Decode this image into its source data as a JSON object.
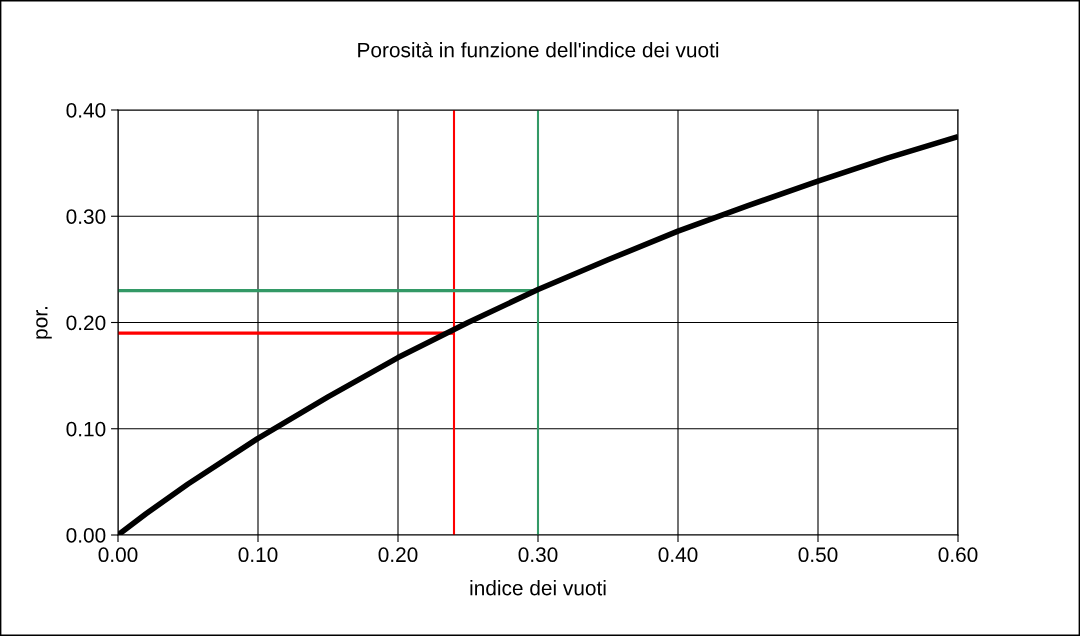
{
  "chart_data": {
    "type": "line",
    "title": "Porosità in funzione dell'indice dei vuoti",
    "xlabel": "indice dei vuoti",
    "ylabel": "por.",
    "x": [
      0,
      0.02,
      0.05,
      0.1,
      0.15,
      0.2,
      0.25,
      0.3,
      0.35,
      0.4,
      0.45,
      0.5,
      0.55,
      0.6
    ],
    "series": [
      {
        "color": "#000000",
        "values": [
          0,
          0.02,
          0.048,
          0.091,
          0.13,
          0.167,
          0.2,
          0.231,
          0.259,
          0.286,
          0.31,
          0.333,
          0.355,
          0.375
        ]
      },
      {
        "color": "#ff0000",
        "x": [
          0,
          0.24
        ],
        "values": [
          0.19,
          0.19
        ]
      },
      {
        "color": "#339966",
        "x": [
          0,
          0.3
        ],
        "values": [
          0.23,
          0.23
        ]
      }
    ],
    "ref_lines": [
      {
        "axis": "x",
        "value": 0.24,
        "color": "#ff0000"
      },
      {
        "axis": "x",
        "value": 0.3,
        "color": "#339966"
      }
    ],
    "xlim": [
      0,
      0.6
    ],
    "ylim": [
      0,
      0.4
    ],
    "xticks": [
      {
        "value": 0,
        "label": "0.00"
      },
      {
        "value": 0.1,
        "label": "0.10"
      },
      {
        "value": 0.2,
        "label": "0.20"
      },
      {
        "value": 0.3,
        "label": "0.30"
      },
      {
        "value": 0.4,
        "label": "0.40"
      },
      {
        "value": 0.5,
        "label": "0.50"
      },
      {
        "value": 0.6,
        "label": "0.60"
      }
    ],
    "yticks": [
      {
        "value": 0,
        "label": "0.00"
      },
      {
        "value": 0.1,
        "label": "0.10"
      },
      {
        "value": 0.2,
        "label": "0.20"
      },
      {
        "value": 0.3,
        "label": "0.30"
      },
      {
        "value": 0.4,
        "label": "0.40"
      }
    ],
    "grid": true,
    "legend": false,
    "marker": "none",
    "line_style": "solid"
  }
}
